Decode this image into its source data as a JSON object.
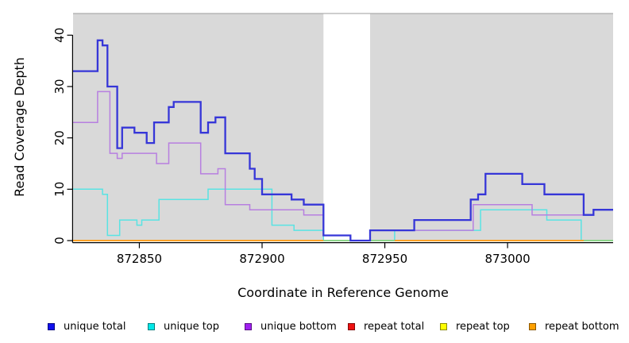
{
  "chart_data": {
    "type": "line",
    "step": true,
    "x_label": "Coordinate in Reference Genome",
    "y_label": "Read Coverage Depth",
    "x_ticks": [
      872850,
      872900,
      872950,
      873000
    ],
    "y_ticks": [
      0,
      10,
      20,
      30,
      40
    ],
    "x_range": [
      872823,
      873043
    ],
    "y_range": [
      0,
      44
    ],
    "grid": false,
    "plot_background": "#d9d9d9",
    "plot_top_border": "#9c9c9c",
    "gap_region": {
      "start": 872925,
      "end": 872944,
      "color": "#ffffff"
    },
    "baseline_blend": {
      "color": "#85d685",
      "value": 0,
      "segments": [
        [
          872925,
          872954
        ],
        [
          873030,
          873043
        ]
      ]
    },
    "series": [
      {
        "name": "unique total",
        "line_color": "#3636d8",
        "line_width": 2.3,
        "points": [
          [
            872823,
            33
          ],
          [
            872833,
            39
          ],
          [
            872835,
            38
          ],
          [
            872837,
            30
          ],
          [
            872841,
            18
          ],
          [
            872843,
            22
          ],
          [
            872848,
            21
          ],
          [
            872853,
            19
          ],
          [
            872856,
            23
          ],
          [
            872862,
            26
          ],
          [
            872864,
            27
          ],
          [
            872875,
            21
          ],
          [
            872878,
            23
          ],
          [
            872881,
            24
          ],
          [
            872885,
            17
          ],
          [
            872895,
            14
          ],
          [
            872897,
            12
          ],
          [
            872900,
            9
          ],
          [
            872912,
            8
          ],
          [
            872917,
            7
          ],
          [
            872925,
            1
          ],
          [
            872936,
            0
          ],
          [
            872944,
            2
          ],
          [
            872962,
            4
          ],
          [
            872985,
            8
          ],
          [
            872988,
            9
          ],
          [
            872991,
            13
          ],
          [
            873006,
            11
          ],
          [
            873015,
            9
          ],
          [
            873031,
            5
          ],
          [
            873035,
            6
          ],
          [
            873043,
            6
          ]
        ]
      },
      {
        "name": "unique top",
        "line_color": "#59e3e3",
        "line_width": 1.5,
        "points": [
          [
            872823,
            10
          ],
          [
            872835,
            9
          ],
          [
            872837,
            1
          ],
          [
            872842,
            4
          ],
          [
            872849,
            3
          ],
          [
            872851,
            4
          ],
          [
            872858,
            8
          ],
          [
            872878,
            10
          ],
          [
            872904,
            3
          ],
          [
            872913,
            2
          ],
          [
            872925,
            0
          ],
          [
            872954,
            2
          ],
          [
            872989,
            6
          ],
          [
            873016,
            4
          ],
          [
            873030,
            0
          ],
          [
            873043,
            0
          ]
        ]
      },
      {
        "name": "unique bottom",
        "line_color": "#b77fe0",
        "line_width": 1.5,
        "points": [
          [
            872823,
            23
          ],
          [
            872833,
            29
          ],
          [
            872838,
            17
          ],
          [
            872841,
            16
          ],
          [
            872843,
            17
          ],
          [
            872857,
            15
          ],
          [
            872862,
            19
          ],
          [
            872875,
            13
          ],
          [
            872882,
            14
          ],
          [
            872885,
            7
          ],
          [
            872895,
            6
          ],
          [
            872917,
            5
          ],
          [
            872925,
            1
          ],
          [
            872936,
            0
          ],
          [
            872944,
            2
          ],
          [
            872986,
            7
          ],
          [
            873010,
            5
          ],
          [
            873035,
            6
          ],
          [
            873043,
            6
          ]
        ]
      },
      {
        "name": "repeat total",
        "line_color": "#e02020",
        "line_width": 1.4,
        "points": [
          [
            872823,
            0
          ],
          [
            873043,
            0
          ]
        ]
      },
      {
        "name": "repeat top",
        "line_color": "#f5f520",
        "line_width": 1.4,
        "points": [
          [
            872823,
            0
          ],
          [
            873043,
            0
          ]
        ]
      },
      {
        "name": "repeat bottom",
        "line_color": "#ff9e1f",
        "line_width": 1.8,
        "draw_segments": [
          [
            872823,
            872925
          ],
          [
            872954,
            873031
          ]
        ],
        "points": [
          [
            872823,
            0
          ],
          [
            873043,
            0
          ]
        ]
      }
    ]
  },
  "legend": {
    "items": [
      {
        "label": "unique total",
        "color": "#1111ee"
      },
      {
        "label": "unique top",
        "color": "#00e8e8"
      },
      {
        "label": "unique bottom",
        "color": "#a020f0"
      },
      {
        "label": "repeat total",
        "color": "#ee1111"
      },
      {
        "label": "repeat top",
        "color": "#ffff00"
      },
      {
        "label": "repeat bottom",
        "color": "#ffa000"
      }
    ]
  }
}
